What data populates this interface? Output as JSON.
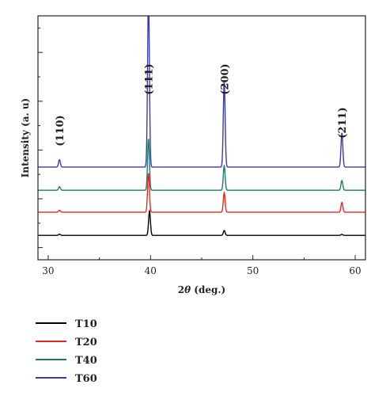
{
  "chart_data": {
    "type": "line",
    "title": "",
    "xlabel_prefix": "2",
    "xlabel_symbol": "θ",
    "xlabel_suffix": " (deg.)",
    "ylabel": "Intensity (a. u)",
    "xlim": [
      29,
      61
    ],
    "x_ticks": [
      30,
      40,
      50,
      60
    ],
    "x_tick_labels": [
      "30",
      "40",
      "50",
      "60"
    ],
    "ylim": [
      0,
      100
    ],
    "y_tick_labels_shown": false,
    "grid": false,
    "legend_position": "below-left",
    "peak_labels": [
      {
        "text": "(110)",
        "x": 31.1
      },
      {
        "text": "(111)",
        "x": 39.8
      },
      {
        "text": "(200)",
        "x": 47.2
      },
      {
        "text": "(211)",
        "x": 58.7
      }
    ],
    "series": [
      {
        "name": "T10",
        "color": "#000000",
        "baseline": 10,
        "peaks": [
          {
            "x": 31.1,
            "height": 0.5
          },
          {
            "x": 39.9,
            "height": 10
          },
          {
            "x": 47.2,
            "height": 2
          },
          {
            "x": 58.7,
            "height": 0.4
          }
        ]
      },
      {
        "name": "T20",
        "color": "#e8281e",
        "baseline": 19.5,
        "peaks": [
          {
            "x": 31.1,
            "height": 0.8
          },
          {
            "x": 39.8,
            "height": 16
          },
          {
            "x": 47.2,
            "height": 8
          },
          {
            "x": 58.7,
            "height": 4
          }
        ]
      },
      {
        "name": "T40",
        "color": "#1f7a6a",
        "baseline": 28.5,
        "peaks": [
          {
            "x": 31.1,
            "height": 1.5
          },
          {
            "x": 39.8,
            "height": 21
          },
          {
            "x": 47.2,
            "height": 10
          },
          {
            "x": 58.7,
            "height": 4
          }
        ]
      },
      {
        "name": "T60",
        "color": "#3a3aa8",
        "baseline": 38,
        "peaks": [
          {
            "x": 31.1,
            "height": 3
          },
          {
            "x": 39.8,
            "height": 70
          },
          {
            "x": 47.2,
            "height": 35
          },
          {
            "x": 58.7,
            "height": 14
          }
        ]
      }
    ]
  }
}
